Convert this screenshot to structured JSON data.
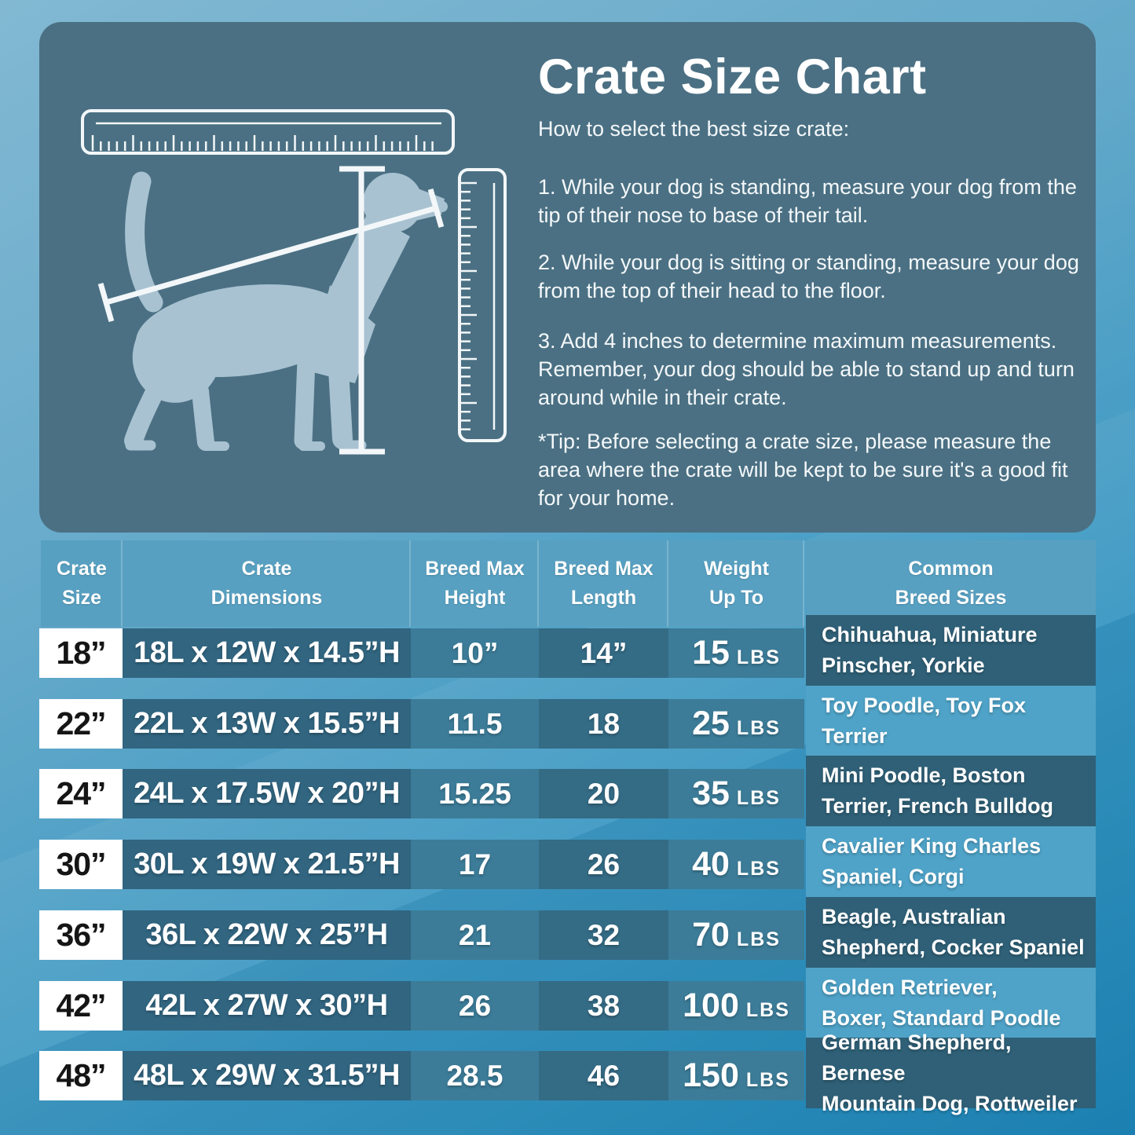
{
  "panel": {
    "title": "Crate Size Chart",
    "subtitle": "How to select the best size crate:",
    "steps": [
      "1. While your dog is standing, measure your dog from the tip of their nose to base of their tail.",
      "2. While your dog is sitting or standing, measure your dog from the top of their head to the floor.",
      "3. Add 4 inches to determine maximum measurements. Remember, your dog should be able to stand up and turn around while in their crate."
    ],
    "tip": "*Tip: Before selecting a crate size, please measure the area where the crate will be kept to be sure it's a good fit for your home.",
    "illustration_icons": [
      "horizontal-ruler-icon",
      "vertical-ruler-icon",
      "dog-silhouette",
      "length-measure-line",
      "height-measure-line"
    ]
  },
  "table": {
    "headers": [
      "Crate\nSize",
      "Crate\nDimensions",
      "Breed Max\nHeight",
      "Breed Max\nLength",
      "Weight\nUp To",
      "Common\nBreed Sizes"
    ],
    "rows": [
      {
        "size": "18”",
        "dimensions": "18L x 12W x 14.5”H",
        "height": "10”",
        "length": "14”",
        "weight": "15",
        "weight_unit": "LBS",
        "breeds": "Chihuahua, Miniature\nPinscher, Yorkie"
      },
      {
        "size": "22”",
        "dimensions": "22L x 13W x 15.5”H",
        "height": "11.5",
        "length": "18",
        "weight": "25",
        "weight_unit": "LBS",
        "breeds": "Toy Poodle, Toy Fox\nTerrier"
      },
      {
        "size": "24”",
        "dimensions": "24L x 17.5W x 20”H",
        "height": "15.25",
        "length": "20",
        "weight": "35",
        "weight_unit": "LBS",
        "breeds": "Mini Poodle, Boston\nTerrier, French Bulldog"
      },
      {
        "size": "30”",
        "dimensions": "30L x 19W x 21.5”H",
        "height": "17",
        "length": "26",
        "weight": "40",
        "weight_unit": "LBS",
        "breeds": "Cavalier King Charles\nSpaniel, Corgi"
      },
      {
        "size": "36”",
        "dimensions": "36L x 22W x 25”H",
        "height": "21",
        "length": "32",
        "weight": "70",
        "weight_unit": "LBS",
        "breeds": "Beagle, Australian\nShepherd, Cocker Spaniel"
      },
      {
        "size": "42”",
        "dimensions": "42L x 27W x 30”H",
        "height": "26",
        "length": "38",
        "weight": "100",
        "weight_unit": "LBS",
        "breeds": "Golden Retriever,\nBoxer, Standard Poodle"
      },
      {
        "size": "48”",
        "dimensions": "48L x 29W x 31.5”H",
        "height": "28.5",
        "length": "46",
        "weight": "150",
        "weight_unit": "LBS",
        "breeds": "German Shepherd, Bernese\nMountain Dog, Rottweiler"
      }
    ]
  },
  "chart_data": {
    "type": "table",
    "title": "Crate Size Chart",
    "columns": [
      "Crate Size",
      "Crate Dimensions",
      "Breed Max Height",
      "Breed Max Length",
      "Weight Up To",
      "Common Breed Sizes"
    ],
    "rows": [
      [
        "18”",
        "18L x 12W x 14.5”H",
        "10”",
        "14”",
        "15 LBS",
        "Chihuahua, Miniature Pinscher, Yorkie"
      ],
      [
        "22”",
        "22L x 13W x 15.5”H",
        "11.5",
        "18",
        "25 LBS",
        "Toy Poodle, Toy Fox Terrier"
      ],
      [
        "24”",
        "24L x 17.5W x 20”H",
        "15.25",
        "20",
        "35 LBS",
        "Mini Poodle, Boston Terrier, French Bulldog"
      ],
      [
        "30”",
        "30L x 19W x 21.5”H",
        "17",
        "26",
        "40 LBS",
        "Cavalier King Charles Spaniel, Corgi"
      ],
      [
        "36”",
        "36L x 22W x 25”H",
        "21",
        "32",
        "70 LBS",
        "Beagle, Australian Shepherd, Cocker Spaniel"
      ],
      [
        "42”",
        "42L x 27W x 30”H",
        "26",
        "38",
        "100 LBS",
        "Golden Retriever, Boxer, Standard Poodle"
      ],
      [
        "48”",
        "48L x 29W x 31.5”H",
        "28.5",
        "46",
        "150 LBS",
        "German Shepherd, Bernese Mountain Dog, Rottweiler"
      ]
    ]
  },
  "colors": {
    "page_top": "#82b8d2",
    "page_bottom": "#1d86b8",
    "panel": "#4b7083",
    "dog": "#a8c2d1",
    "ruler": "#f3f7f9",
    "header_cell": "#58a0c1",
    "size_cell_bg": "#ffffff",
    "size_cell_text": "#151515",
    "dims_cell": "#316580",
    "height_cell": "#3c7c98",
    "length_cell": "#346b85",
    "weight_cell": "#3c7c98",
    "breed_dark": "#2f6077",
    "breed_light": "#4fa3c8"
  }
}
